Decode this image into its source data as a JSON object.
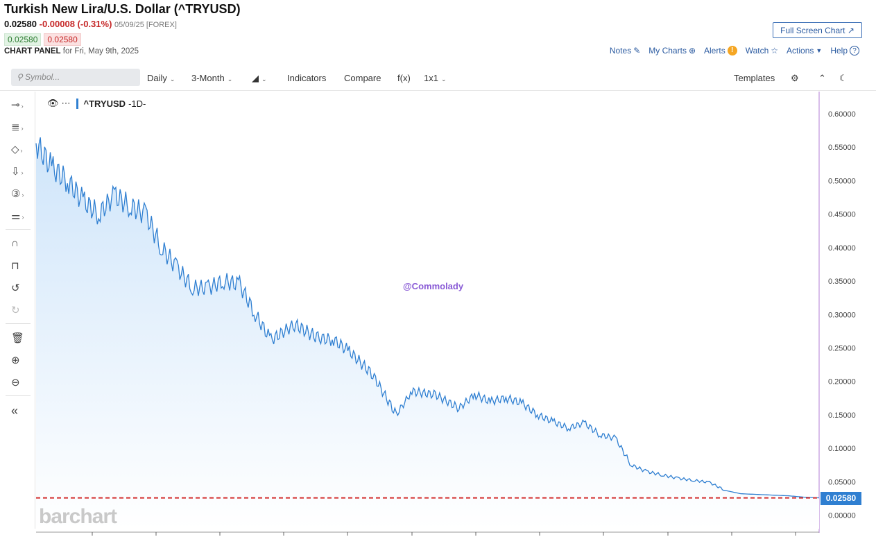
{
  "header": {
    "title": "Turkish New Lira/U.S. Dollar (^TRYUSD)",
    "last": "0.02580",
    "change": "-0.00008 (-0.31%)",
    "date": "05/09/25 [FOREX]",
    "bid": "0.02580",
    "ask": "0.02580",
    "panel_label": "CHART PANEL",
    "panel_for": "for Fri, May 9th, 2025",
    "fullscreen": "Full Screen Chart"
  },
  "actions": {
    "notes": "Notes",
    "my_charts": "My Charts",
    "alerts": "Alerts",
    "watch": "Watch",
    "actions": "Actions",
    "help": "Help"
  },
  "toolbar": {
    "symbol_placeholder": "Symbol...",
    "interval": "Daily",
    "range": "3-Month",
    "indicators": "Indicators",
    "compare": "Compare",
    "fx": "f(x)",
    "layout": "1x1",
    "templates": "Templates"
  },
  "legend": {
    "symbol": "^TRYUSD",
    "interval": "-1D-"
  },
  "watermark": "@Commolady",
  "brand": "barchart",
  "colors": {
    "line": "#2f7fd1",
    "fill_top": "#cfe5fa",
    "last_line": "#d32f2f",
    "accent": "#2a5aa0"
  },
  "chart_data": {
    "type": "area",
    "series": [
      {
        "x": [
          0,
          2,
          4,
          6,
          8,
          10,
          12,
          14,
          16,
          18,
          20,
          22,
          24,
          26,
          28,
          30,
          33,
          36,
          38,
          40,
          43,
          46,
          48,
          51,
          54,
          56,
          58,
          60,
          62,
          64,
          66,
          68,
          70,
          72,
          74,
          76,
          78,
          80,
          82,
          84,
          86,
          88,
          90,
          92,
          94,
          96,
          98,
          100
        ],
        "values": [
          0.556,
          0.52,
          0.5,
          0.47,
          0.45,
          0.478,
          0.462,
          0.45,
          0.4,
          0.37,
          0.34,
          0.34,
          0.35,
          0.345,
          0.3,
          0.262,
          0.285,
          0.265,
          0.262,
          0.245,
          0.21,
          0.15,
          0.185,
          0.18,
          0.16,
          0.18,
          0.17,
          0.175,
          0.168,
          0.15,
          0.14,
          0.13,
          0.138,
          0.12,
          0.115,
          0.075,
          0.065,
          0.06,
          0.055,
          0.052,
          0.049,
          0.037,
          0.032,
          0.031,
          0.03,
          0.029,
          0.027,
          0.0258
        ]
      }
    ],
    "y_ticks": [
      "0.60000",
      "0.55000",
      "0.50000",
      "0.45000",
      "0.40000",
      "0.35000",
      "0.30000",
      "0.25000",
      "0.20000",
      "0.15000",
      "0.10000",
      "0.05000",
      "0.00000"
    ],
    "ylim": [
      0,
      0.62
    ],
    "last_value": "0.02580",
    "grid": false,
    "legend": "top-left"
  }
}
